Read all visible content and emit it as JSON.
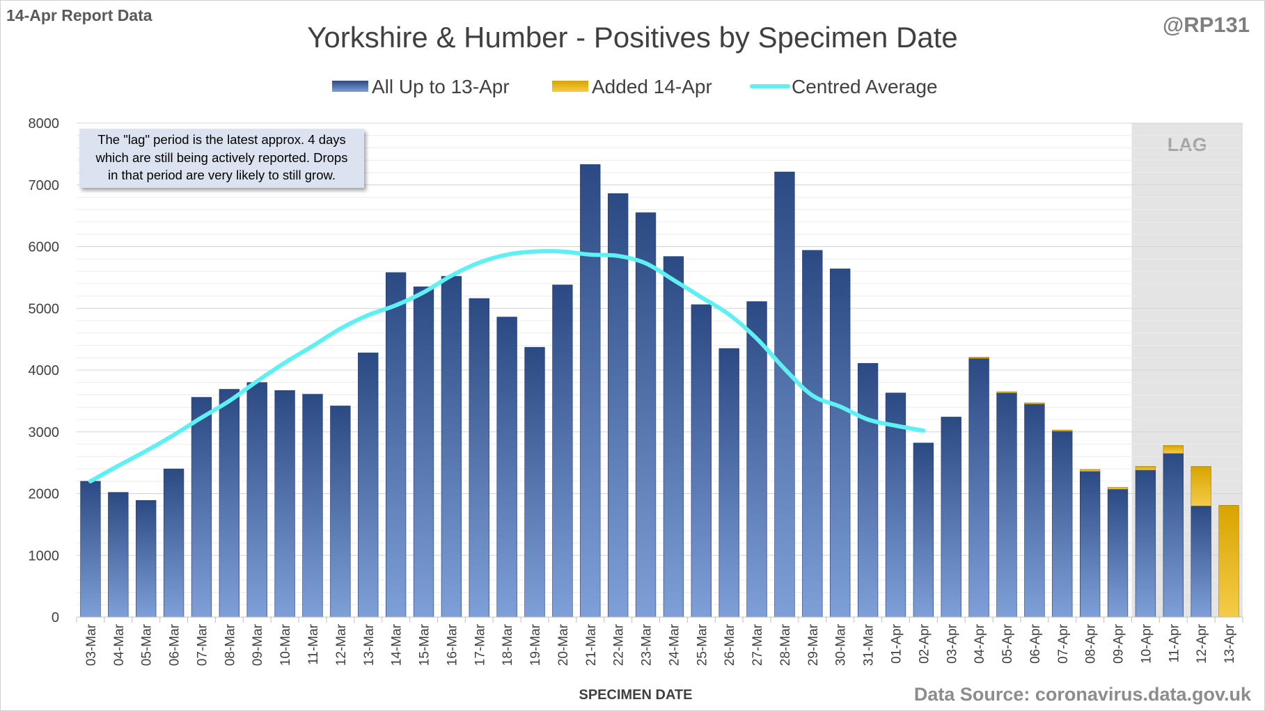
{
  "header": {
    "report_label": "14-Apr Report Data",
    "handle": "@RP131",
    "source": "Data Source: coronavirus.data.gov.uk"
  },
  "note": {
    "line1": "The \"lag\" period is the latest approx. 4 days",
    "line2": "which are still being actively reported.  Drops",
    "line3": "in that period are very likely to still grow."
  },
  "colors": {
    "base_top": "#2b4a84",
    "base_bottom": "#7f9fd8",
    "added_top": "#d9a400",
    "added_bottom": "#f4cc4a",
    "avg_line": "#5ef0f2",
    "lag_band": "#e4e4e4"
  },
  "chart_data": {
    "type": "bar",
    "title": "Yorkshire & Humber - Positives by Specimen Date",
    "xlabel": "SPECIMEN DATE",
    "ylabel": "",
    "ylim": [
      0,
      8000
    ],
    "yticks": [
      0,
      1000,
      2000,
      3000,
      4000,
      5000,
      6000,
      7000,
      8000
    ],
    "grid": true,
    "legend_position": "top",
    "lag_label": "LAG",
    "lag_categories": [
      "10-Apr",
      "11-Apr",
      "12-Apr",
      "13-Apr"
    ],
    "categories": [
      "03-Mar",
      "04-Mar",
      "05-Mar",
      "06-Mar",
      "07-Mar",
      "08-Mar",
      "09-Mar",
      "10-Mar",
      "11-Mar",
      "12-Mar",
      "13-Mar",
      "14-Mar",
      "15-Mar",
      "16-Mar",
      "17-Mar",
      "18-Mar",
      "19-Mar",
      "20-Mar",
      "21-Mar",
      "22-Mar",
      "23-Mar",
      "24-Mar",
      "25-Mar",
      "26-Mar",
      "27-Mar",
      "28-Mar",
      "29-Mar",
      "30-Mar",
      "31-Mar",
      "01-Apr",
      "02-Apr",
      "03-Apr",
      "04-Apr",
      "05-Apr",
      "06-Apr",
      "07-Apr",
      "08-Apr",
      "09-Apr",
      "10-Apr",
      "11-Apr",
      "12-Apr",
      "13-Apr"
    ],
    "series": [
      {
        "name": "All Up to 13-Apr",
        "type": "bar",
        "values": [
          2200,
          2020,
          1890,
          2400,
          3560,
          3690,
          3800,
          3670,
          3610,
          3420,
          4280,
          5580,
          5350,
          5520,
          5160,
          4860,
          4370,
          5380,
          7330,
          6860,
          6550,
          5840,
          5060,
          4350,
          5110,
          7210,
          5940,
          5640,
          4110,
          3630,
          2820,
          3240,
          4190,
          3630,
          3450,
          3010,
          2360,
          2070,
          2380,
          2650,
          1800,
          0
        ]
      },
      {
        "name": "Added 14-Apr",
        "type": "bar",
        "values": [
          0,
          0,
          0,
          0,
          0,
          0,
          0,
          0,
          0,
          0,
          0,
          0,
          0,
          0,
          0,
          0,
          0,
          0,
          0,
          0,
          0,
          0,
          0,
          0,
          0,
          0,
          0,
          0,
          0,
          0,
          0,
          0,
          20,
          20,
          20,
          20,
          30,
          30,
          60,
          130,
          640,
          1810
        ]
      },
      {
        "name": "Centred Average",
        "type": "line",
        "values": [
          2200,
          2450,
          2690,
          2950,
          3230,
          3500,
          3820,
          4120,
          4390,
          4670,
          4890,
          5050,
          5260,
          5530,
          5740,
          5870,
          5920,
          5920,
          5870,
          5850,
          5730,
          5460,
          5180,
          4900,
          4510,
          4020,
          3590,
          3410,
          3200,
          3100,
          3020,
          null,
          null,
          null,
          null,
          null,
          null,
          null,
          null,
          null,
          null,
          null
        ],
        "start_index": 0
      }
    ]
  }
}
